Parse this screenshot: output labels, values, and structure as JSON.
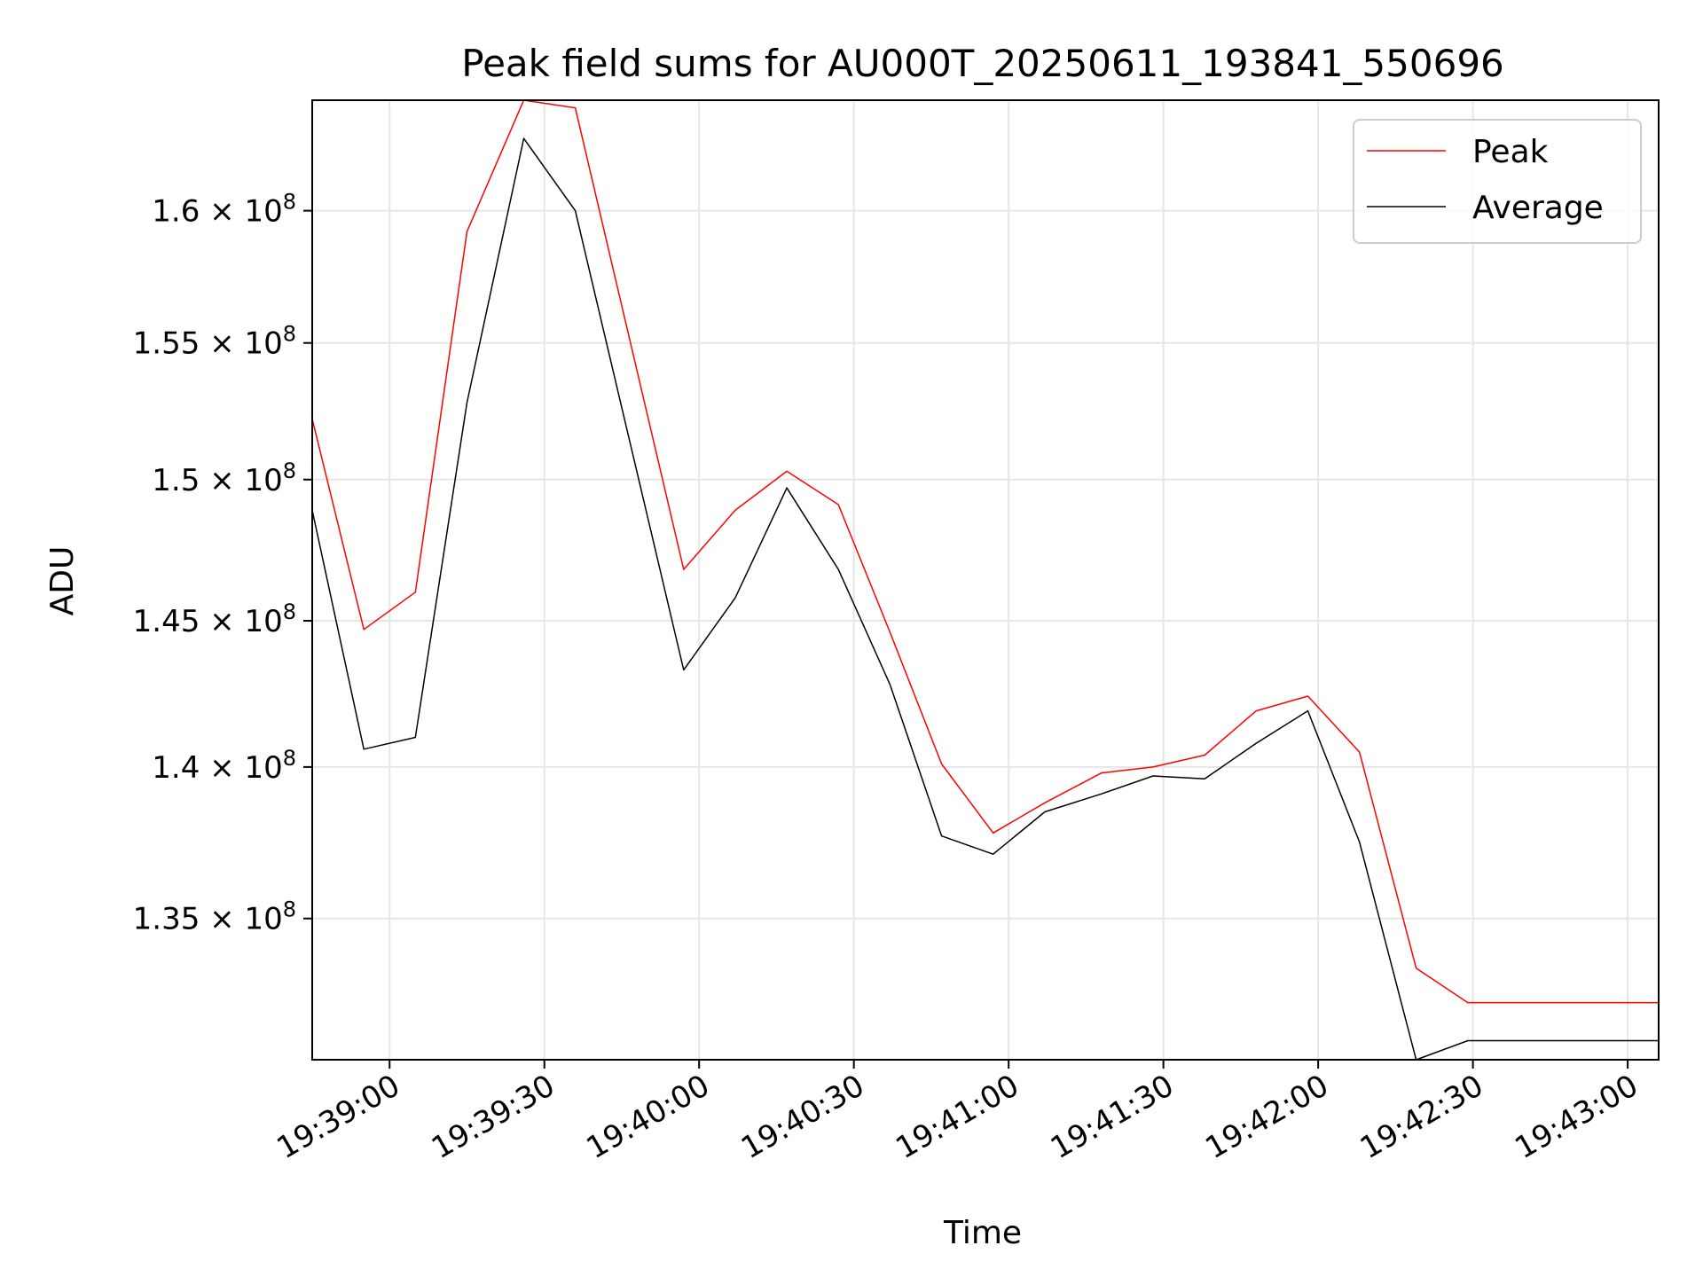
{
  "chart_data": {
    "type": "line",
    "title": "Peak field sums for AU000T_20250611_193841_550696",
    "xlabel": "Time",
    "ylabel": "ADU",
    "y_scale": "log",
    "xlim": [
      "19:38:45",
      "19:43:06"
    ],
    "ylim": [
      130500000,
      164300000
    ],
    "grid": true,
    "legend_position": "top-right",
    "x_ticks": [
      "19:39:00",
      "19:39:30",
      "19:40:00",
      "19:40:30",
      "19:41:00",
      "19:41:30",
      "19:42:00",
      "19:42:30",
      "19:43:00"
    ],
    "y_ticks": [
      {
        "value": 135000000,
        "mantissa": "1.35"
      },
      {
        "value": 140000000,
        "mantissa": "1.4"
      },
      {
        "value": 145000000,
        "mantissa": "1.45"
      },
      {
        "value": 150000000,
        "mantissa": "1.5"
      },
      {
        "value": 155000000,
        "mantissa": "1.55"
      },
      {
        "value": 160000000,
        "mantissa": "1.6"
      }
    ],
    "y_tick_base": "10",
    "y_tick_exponent": "8",
    "x": [
      "19:38:45",
      "19:38:55",
      "19:39:05",
      "19:39:15",
      "19:39:26",
      "19:39:36",
      "19:39:57",
      "19:40:07",
      "19:40:17",
      "19:40:27",
      "19:40:37",
      "19:40:47",
      "19:40:57",
      "19:41:07",
      "19:41:18",
      "19:41:28",
      "19:41:38",
      "19:41:48",
      "19:41:58",
      "19:42:08",
      "19:42:19",
      "19:42:29",
      "19:43:06"
    ],
    "series": [
      {
        "name": "Peak",
        "color": "#ff0000",
        "values": [
          152200000,
          144700000,
          146000000,
          159200000,
          164300000,
          164000000,
          146800000,
          148900000,
          150300000,
          149100000,
          144600000,
          140100000,
          137800000,
          138800000,
          139800000,
          140000000,
          140400000,
          141900000,
          142400000,
          140500000,
          133400000,
          132300000,
          132300000
        ]
      },
      {
        "name": "Average",
        "color": "#000000",
        "values": [
          148900000,
          140600000,
          141000000,
          152800000,
          162800000,
          160000000,
          143300000,
          145800000,
          149700000,
          146800000,
          142800000,
          137700000,
          137100000,
          138500000,
          139100000,
          139700000,
          139600000,
          140800000,
          141900000,
          137500000,
          130500000,
          131100000,
          131100000
        ]
      }
    ]
  }
}
